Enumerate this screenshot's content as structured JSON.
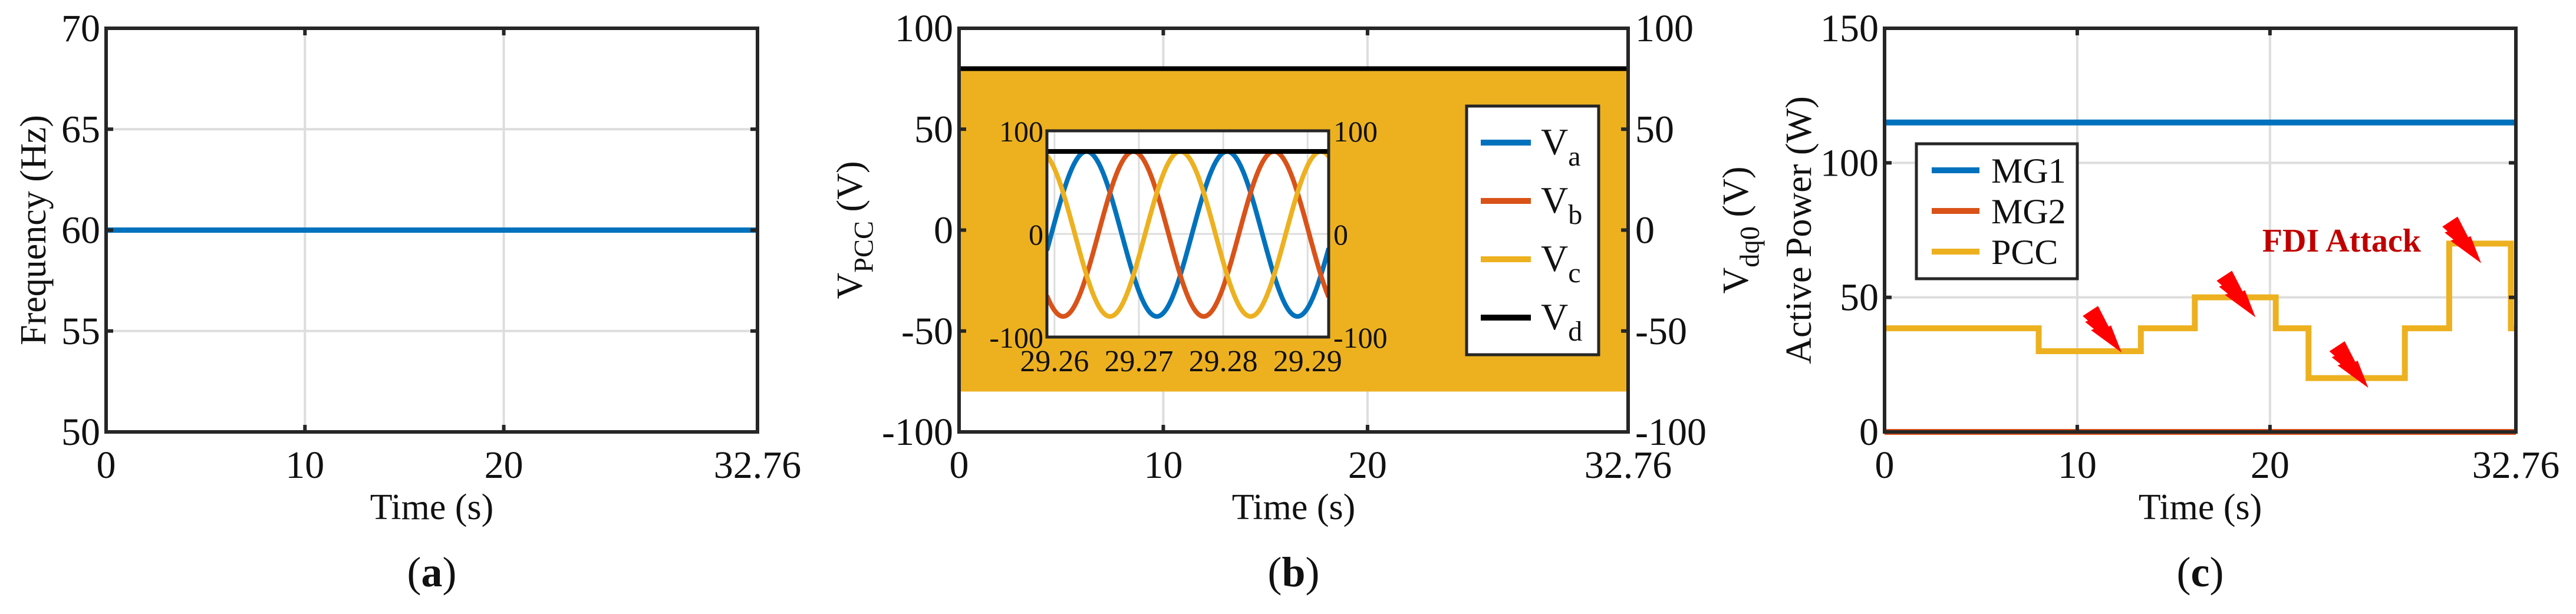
{
  "colors": {
    "blue": "#0072BD",
    "orange": "#D95319",
    "yellow": "#EDB120",
    "black": "#000000",
    "attack": "#C00000",
    "bolt": "#FF0000",
    "grid": "#DDDDDD",
    "axis": "#262626"
  },
  "chart_data": [
    {
      "type": "line",
      "panel_label": {
        "open": "(",
        "letter": "a",
        "close": ")"
      },
      "xlabel": "Time (s)",
      "ylabel": {
        "symbol": "Frequency (Hz)",
        "subscript": "",
        "unit": ""
      },
      "xlim": [
        0,
        32.76
      ],
      "ylim": [
        50,
        70
      ],
      "xticks": [
        0,
        10,
        20,
        32.76
      ],
      "xtick_labels": [
        "0",
        "10",
        "20",
        "32.76"
      ],
      "yticks": [
        50,
        55,
        60,
        65,
        70
      ],
      "ytick_labels": [
        "50",
        "55",
        "60",
        "65",
        "70"
      ],
      "grid": true,
      "series": [
        {
          "name": "Frequency",
          "color": "blue",
          "x": [
            0,
            32.76
          ],
          "y": [
            60,
            60
          ]
        }
      ]
    },
    {
      "type": "line",
      "panel_label": {
        "open": "(",
        "letter": "b",
        "close": ")"
      },
      "xlabel": "Time (s)",
      "ylabel": {
        "symbol": "V",
        "subscript": "PCC",
        "unit": " (V)"
      },
      "ylabel_right": {
        "symbol": "V",
        "subscript": "dq0",
        "unit": " (V)"
      },
      "xlim": [
        0,
        32.76
      ],
      "ylim": [
        -100,
        100
      ],
      "xticks": [
        0,
        10,
        20,
        32.76
      ],
      "xtick_labels": [
        "0",
        "10",
        "20",
        "32.76"
      ],
      "yticks": [
        -100,
        -50,
        0,
        50,
        100
      ],
      "ytick_labels": [
        "-100",
        "-50",
        "0",
        "50",
        "100"
      ],
      "grid": true,
      "series": [
        {
          "symbol": "V",
          "subscript": "a",
          "color": "blue",
          "amplitude": 80,
          "frequency_hz": 60,
          "phase_deg": 0
        },
        {
          "symbol": "V",
          "subscript": "b",
          "color": "orange",
          "amplitude": 80,
          "frequency_hz": 60,
          "phase_deg": -120
        },
        {
          "symbol": "V",
          "subscript": "c",
          "color": "yellow",
          "amplitude": 80,
          "frequency_hz": 60,
          "phase_deg": 120
        },
        {
          "symbol": "V",
          "subscript": "d",
          "color": "black",
          "constant": 80
        }
      ],
      "legend_placement": "right",
      "inset": {
        "xlim": [
          29.2591,
          29.2925
        ],
        "ylim": [
          -100,
          100
        ],
        "xticks": [
          29.26,
          29.27,
          29.28,
          29.29
        ],
        "xtick_labels": [
          "29.26",
          "29.27",
          "29.28",
          "29.29"
        ],
        "yticks": [
          -100,
          0,
          100
        ],
        "ytick_labels": [
          "-100",
          "0",
          "100"
        ],
        "blue_peak_time": 29.2638
      }
    },
    {
      "type": "line",
      "panel_label": {
        "open": "(",
        "letter": "c",
        "close": ")"
      },
      "xlabel": "Time (s)",
      "ylabel": {
        "symbol": "Active Power (W)",
        "subscript": "",
        "unit": ""
      },
      "xlim": [
        0,
        32.76
      ],
      "ylim": [
        0,
        150
      ],
      "xticks": [
        0,
        10,
        20,
        32.76
      ],
      "xtick_labels": [
        "0",
        "10",
        "20",
        "32.76"
      ],
      "yticks": [
        0,
        50,
        100,
        150
      ],
      "ytick_labels": [
        "0",
        "50",
        "100",
        "150"
      ],
      "grid": true,
      "legend_placement": "left",
      "series": [
        {
          "name": "MG1",
          "color": "blue",
          "x": [
            0,
            32.76
          ],
          "y": [
            115,
            115
          ]
        },
        {
          "name": "MG2",
          "color": "orange",
          "x": [
            0,
            32.76
          ],
          "y": [
            0,
            0
          ]
        },
        {
          "name": "PCC",
          "color": "yellow",
          "x": [
            0,
            8,
            8,
            13.3,
            13.3,
            16.1,
            16.1,
            20.3,
            20.3,
            22,
            22,
            27,
            27,
            29.3,
            29.3,
            32.5,
            32.5,
            32.76
          ],
          "y": [
            38.5,
            38.5,
            30,
            30,
            38.5,
            38.5,
            50,
            50,
            38.5,
            38.5,
            20,
            20,
            38.5,
            38.5,
            70,
            70,
            38.5,
            38.5
          ]
        }
      ],
      "annotations": [
        {
          "text": "FDI Attack",
          "x": 19.6,
          "y": 67
        }
      ],
      "attack_markers": [
        {
          "x": 12.3,
          "y": 29.5
        },
        {
          "x": 19.25,
          "y": 42.6
        },
        {
          "x": 25.1,
          "y": 16.4
        },
        {
          "x": 30.96,
          "y": 62.7
        }
      ]
    }
  ]
}
